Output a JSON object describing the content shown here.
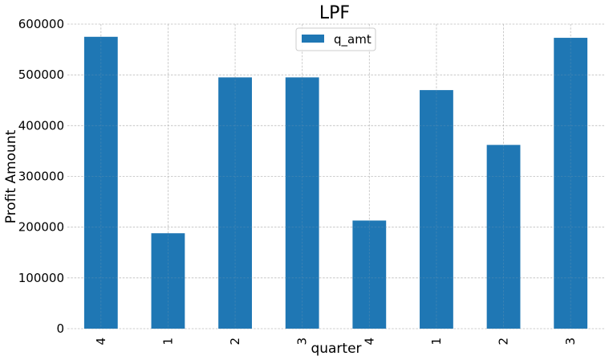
{
  "chart_data": {
    "type": "bar",
    "title": "LPF",
    "xlabel": "quarter",
    "ylabel": "Profit Amount",
    "categories": [
      "4",
      "1",
      "2",
      "3",
      "4",
      "1",
      "2",
      "3"
    ],
    "series": [
      {
        "name": "q_amt",
        "values": [
          575000,
          188000,
          495000,
          495000,
          213000,
          470000,
          362000,
          573000
        ]
      }
    ],
    "ylim": [
      0,
      600000
    ],
    "yticks": [
      0,
      100000,
      200000,
      300000,
      400000,
      500000,
      600000
    ],
    "ytick_labels": [
      "0",
      "100000",
      "200000",
      "300000",
      "400000",
      "500000",
      "600000"
    ],
    "grid": true,
    "legend_position": "top-center",
    "bar_color": "#1f77b4"
  }
}
